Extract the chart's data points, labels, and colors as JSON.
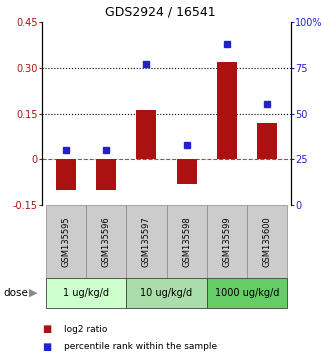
{
  "title": "GDS2924 / 16541",
  "samples": [
    "GSM135595",
    "GSM135596",
    "GSM135597",
    "GSM135598",
    "GSM135599",
    "GSM135600"
  ],
  "log2_ratio": [
    -0.1,
    -0.1,
    0.16,
    -0.08,
    0.32,
    0.12
  ],
  "percentile_rank": [
    30,
    30,
    77,
    33,
    88,
    55
  ],
  "ylim_left": [
    -0.15,
    0.45
  ],
  "ylim_right": [
    0,
    100
  ],
  "yticks_left": [
    -0.15,
    0.0,
    0.15,
    0.3,
    0.45
  ],
  "ytick_labels_left": [
    "-0.15",
    "0",
    "0.15",
    "0.30",
    "0.45"
  ],
  "yticks_right": [
    0,
    25,
    50,
    75,
    100
  ],
  "ytick_labels_right": [
    "0",
    "25",
    "50",
    "75",
    "100%"
  ],
  "hlines_dotted": [
    0.15,
    0.3
  ],
  "hline_dashed": 0.0,
  "bar_color": "#aa1111",
  "dot_color": "#2222cc",
  "dose_groups": [
    {
      "label": "1 ug/kg/d",
      "indices": [
        0,
        1
      ],
      "color": "#ccffcc"
    },
    {
      "label": "10 ug/kg/d",
      "indices": [
        2,
        3
      ],
      "color": "#aaddaa"
    },
    {
      "label": "1000 ug/kg/d",
      "indices": [
        4,
        5
      ],
      "color": "#66cc66"
    }
  ],
  "sample_box_color": "#cccccc",
  "legend_red_label": "log2 ratio",
  "legend_blue_label": "percentile rank within the sample",
  "dose_label": "dose",
  "bar_width": 0.5
}
